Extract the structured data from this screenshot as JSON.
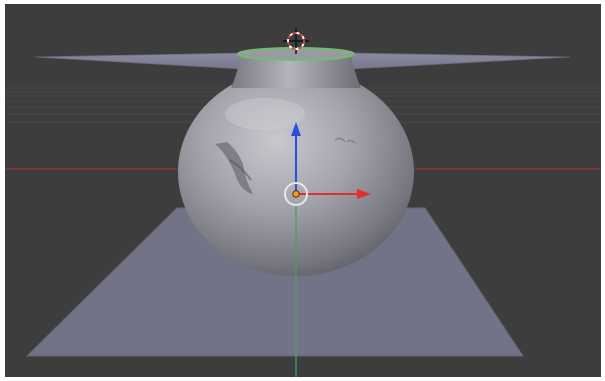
{
  "viewport": {
    "background_color": "#3d3d3d",
    "grid_line_color": "#4a4a4a",
    "x_axis_color": "#b33a3a",
    "y_axis_color": "#3fa35a",
    "icons": {
      "cursor": "3d-cursor-icon",
      "origin": "object-origin-icon",
      "manipulator": "translate-manipulator-icon"
    }
  },
  "scene": {
    "mesh_color": "#8a8a92",
    "plane_color": "#7a7a8c",
    "selection_outline_color": "#6fbf6f",
    "gizmo": {
      "x_color": "#e0302a",
      "y_color": "#2fa84a",
      "z_color": "#2a4fe0"
    }
  }
}
